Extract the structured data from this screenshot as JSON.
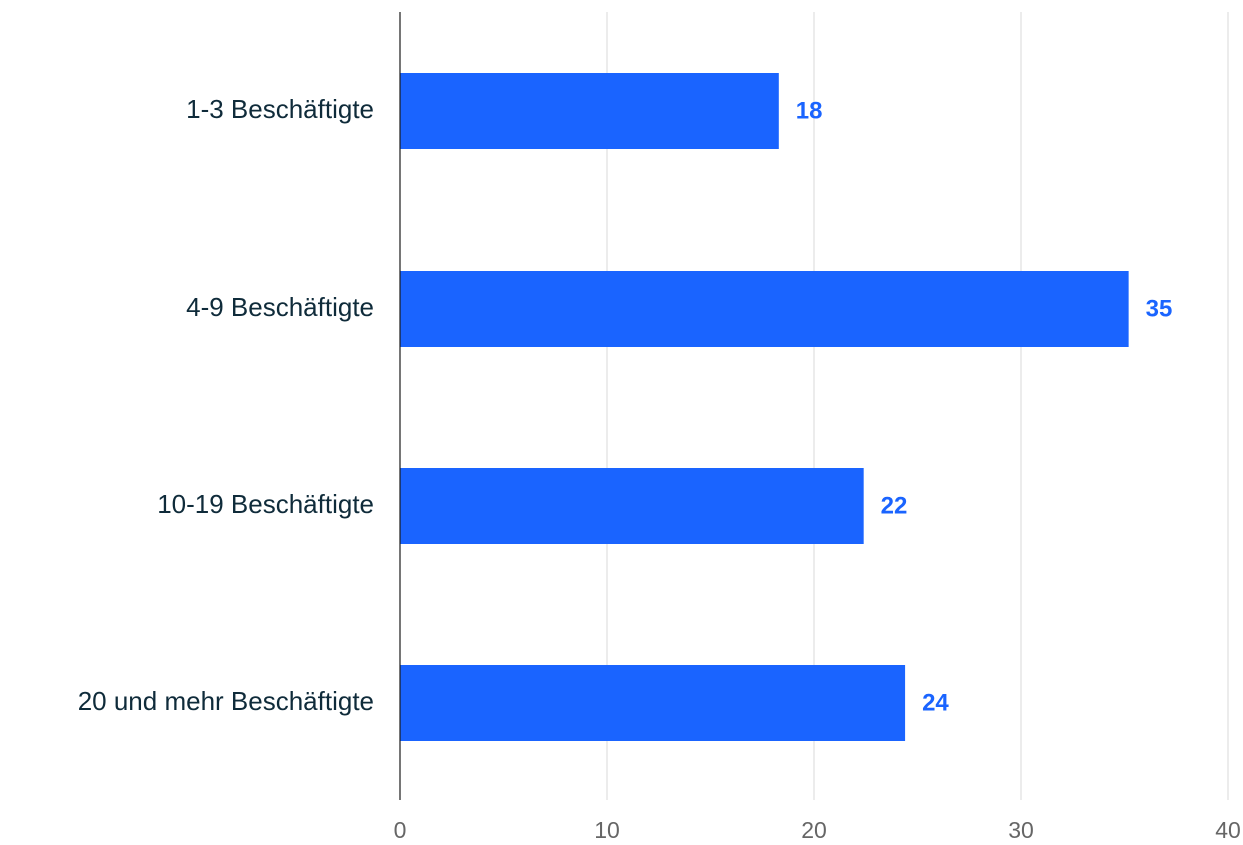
{
  "chart_data": {
    "type": "bar",
    "orientation": "horizontal",
    "categories": [
      "1-3 Beschäftigte",
      "4-9 Beschäftigte",
      "10-19 Beschäftigte",
      "20 und mehr Beschäftigte"
    ],
    "values": [
      18.3,
      35.2,
      22.4,
      24.4
    ],
    "value_labels": [
      "18",
      "35",
      "22",
      "24"
    ],
    "xlim": [
      0,
      40
    ],
    "x_ticks": [
      0,
      10,
      20,
      30,
      40
    ],
    "x_tick_labels": [
      "0",
      "10",
      "20",
      "30",
      "40"
    ],
    "title": "",
    "xlabel": "",
    "ylabel": "",
    "grid": true,
    "legend": "none",
    "colors": {
      "bar": "#1a64ff",
      "value_label": "#1a64ff",
      "category_label": "#0f2b3a",
      "tick_label": "#666666",
      "grid": "#d9d9d9",
      "axis": "#1a1a1a"
    }
  }
}
